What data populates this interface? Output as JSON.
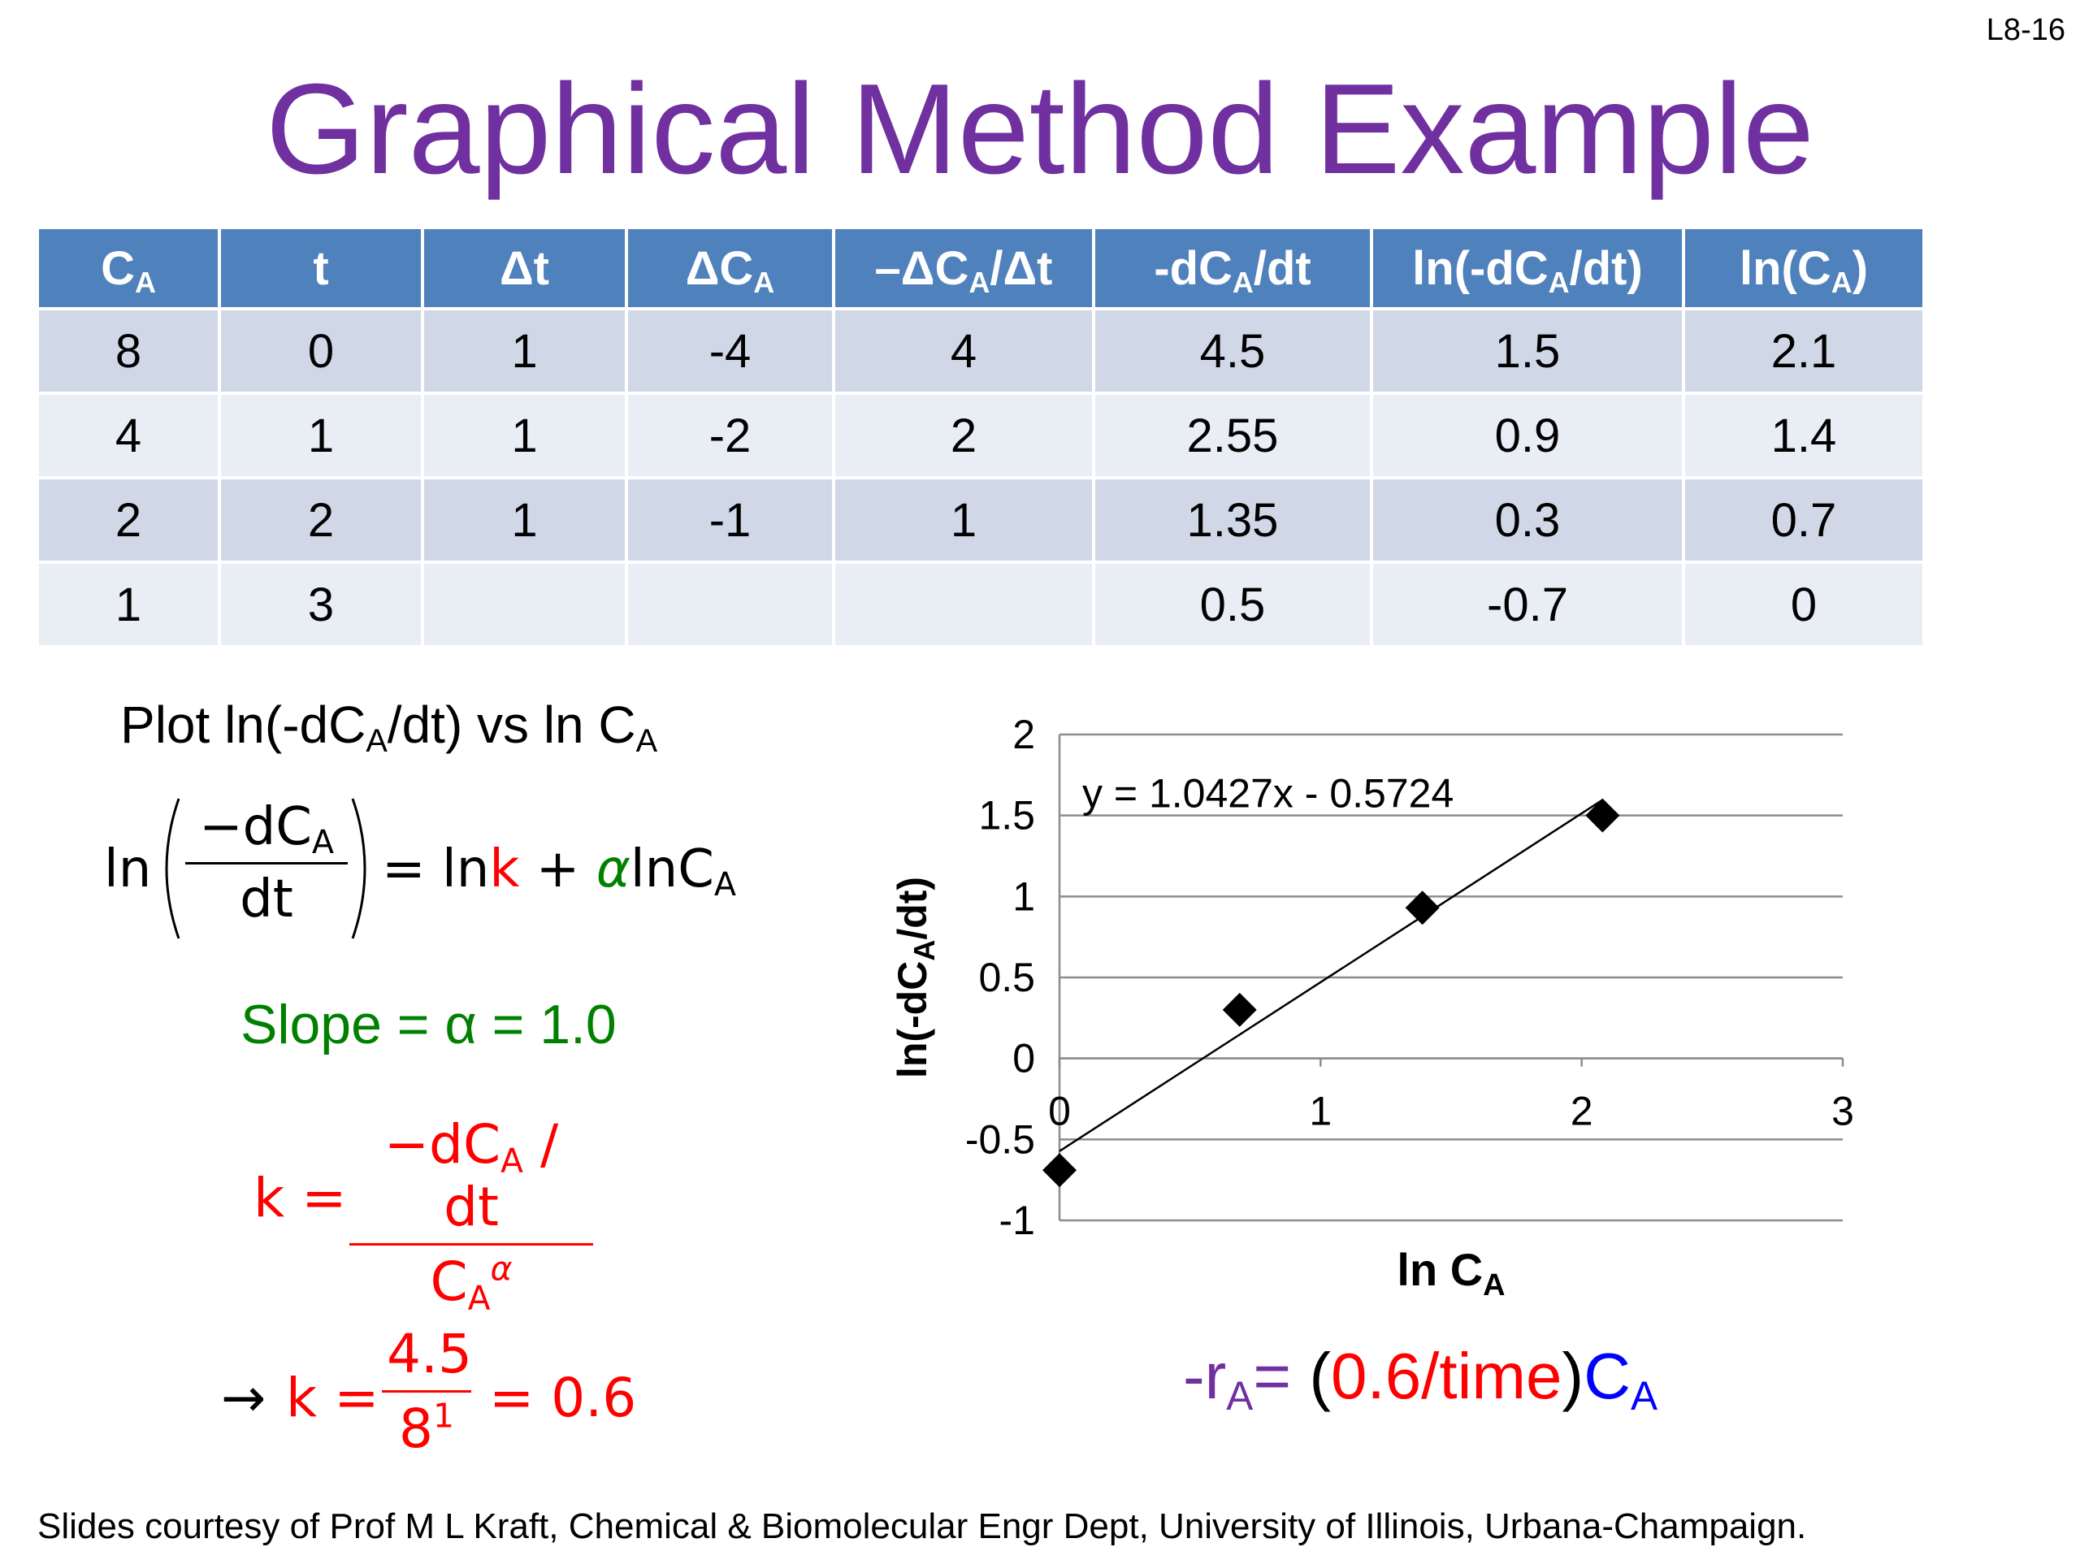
{
  "slide": {
    "number": "L8-16",
    "title": "Graphical Method Example",
    "footer": "Slides courtesy of Prof M L Kraft, Chemical & Biomolecular Engr Dept, University of Illinois, Urbana-Champaign.",
    "colors": {
      "title": "#7030a0",
      "table_header": "#4f81bd",
      "row_odd": "#d0d8e8",
      "row_even": "#e9edf4",
      "k": "#ff0000",
      "slope": "#008000",
      "ca": "#0000ff"
    }
  },
  "table": {
    "headers": [
      "C_A",
      "t",
      "Δt",
      "ΔC_A",
      "–ΔC_A/Δt",
      "-dC_A/dt",
      "ln(-dC_A/dt)",
      "ln(C_A)"
    ],
    "rows": [
      [
        "8",
        "0",
        "1",
        "-4",
        "4",
        "4.5",
        "1.5",
        "2.1"
      ],
      [
        "4",
        "1",
        "1",
        "-2",
        "2",
        "2.55",
        "0.9",
        "1.4"
      ],
      [
        "2",
        "2",
        "1",
        "-1",
        "1",
        "1.35",
        "0.3",
        "0.7"
      ],
      [
        "1",
        "3",
        "",
        "",
        "",
        "0.5",
        "-0.7",
        "0"
      ]
    ]
  },
  "text": {
    "plot_caption_pre": "Plot ln(-dC",
    "plot_caption_mid": "/dt) vs ln C",
    "sub_A": "A",
    "eq1_ln": "ln",
    "eq1_num": "−dC",
    "eq1_den": "dt",
    "eq1_rhs_ln": "= ln",
    "eq1_k": "k",
    "eq1_plus": "+",
    "eq1_alpha": "α",
    "eq1_lnC": "lnC",
    "slope_label": "Slope = α = 1.0",
    "k_lhs": "k =",
    "k_num_pre": "−dC",
    "k_num_post": "dt",
    "k_den": "C",
    "k_den_exp": "α",
    "arrow": "→",
    "k2_lhs": "k =",
    "k2_num": "4.5",
    "k2_den": "8",
    "k2_den_exp": "1",
    "k2_rhs": "= 0.6",
    "rate_pre": "-r",
    "rate_eq": "=",
    "rate_paren_open": "(",
    "rate_k": "0.6/time",
    "rate_paren_close": ")",
    "rate_ca": "C"
  },
  "chart_data": {
    "type": "scatter",
    "xlabel": "ln C_A",
    "ylabel": "ln(-dC_A/dt)",
    "xlim": [
      0,
      3
    ],
    "ylim": [
      -1,
      2
    ],
    "x_ticks": [
      0,
      1,
      2,
      3
    ],
    "y_ticks": [
      -1,
      -0.5,
      0,
      0.5,
      1,
      1.5,
      2
    ],
    "y_tick_labels": [
      "-1",
      "-0.5",
      "0",
      "0.5",
      "1",
      "1.5",
      "2"
    ],
    "x_tick_labels": [
      "0",
      "1",
      "2",
      "3"
    ],
    "grid": "horizontal",
    "points": [
      {
        "x": 2.08,
        "y": 1.5
      },
      {
        "x": 1.39,
        "y": 0.93
      },
      {
        "x": 0.69,
        "y": 0.3
      },
      {
        "x": 0.0,
        "y": -0.69
      }
    ],
    "trendline": {
      "slope": 1.0427,
      "intercept": -0.5724,
      "x_range": [
        0,
        2.08
      ],
      "label": "y = 1.0427x - 0.5724"
    }
  }
}
